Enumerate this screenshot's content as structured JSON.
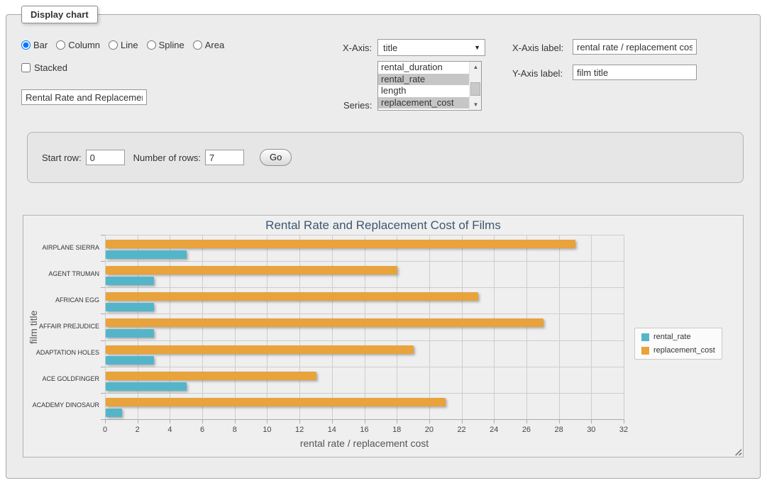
{
  "page": {
    "legend_title": "Display chart"
  },
  "controls": {
    "chart_types": [
      {
        "label": "Bar",
        "selected": true
      },
      {
        "label": "Column",
        "selected": false
      },
      {
        "label": "Line",
        "selected": false
      },
      {
        "label": "Spline",
        "selected": false
      },
      {
        "label": "Area",
        "selected": false
      }
    ],
    "stacked": {
      "label": "Stacked",
      "checked": false
    },
    "title_input": {
      "value": "Rental Rate and Replacemen"
    },
    "x_axis": {
      "label": "X-Axis:",
      "selected": "title"
    },
    "series_picker": {
      "label": "Series:",
      "options": [
        {
          "label": "rental_duration",
          "selected": false
        },
        {
          "label": "rental_rate",
          "selected": true
        },
        {
          "label": "length",
          "selected": false
        },
        {
          "label": "replacement_cost",
          "selected": true
        }
      ]
    },
    "x_axis_label": {
      "label": "X-Axis label:",
      "value": "rental rate / replacement cost"
    },
    "y_axis_label": {
      "label": "Y-Axis label:",
      "value": "film title"
    }
  },
  "rows_panel": {
    "start_row_label": "Start row:",
    "start_row_value": "0",
    "num_rows_label": "Number of rows:",
    "num_rows_value": "7",
    "go_label": "Go"
  },
  "chart_data": {
    "type": "bar",
    "title": "Rental Rate and Replacement Cost of Films",
    "categories": [
      "AIRPLANE SIERRA",
      "AGENT TRUMAN",
      "AFRICAN EGG",
      "AFFAIR PREJUDICE",
      "ADAPTATION HOLES",
      "ACE GOLDFINGER",
      "ACADEMY DINOSAUR"
    ],
    "series": [
      {
        "name": "rental_rate",
        "color": "#55b5c8",
        "values": [
          4.99,
          2.99,
          2.99,
          2.99,
          2.99,
          4.99,
          0.99
        ]
      },
      {
        "name": "replacement_cost",
        "color": "#e8a33c",
        "values": [
          28.99,
          17.99,
          22.99,
          26.99,
          18.99,
          12.99,
          20.99
        ]
      }
    ],
    "xlabel": "rental rate / replacement cost",
    "ylabel": "film title",
    "xlim": [
      0,
      32
    ],
    "x_tick_step": 2,
    "grid": true,
    "legend_position": "right"
  }
}
